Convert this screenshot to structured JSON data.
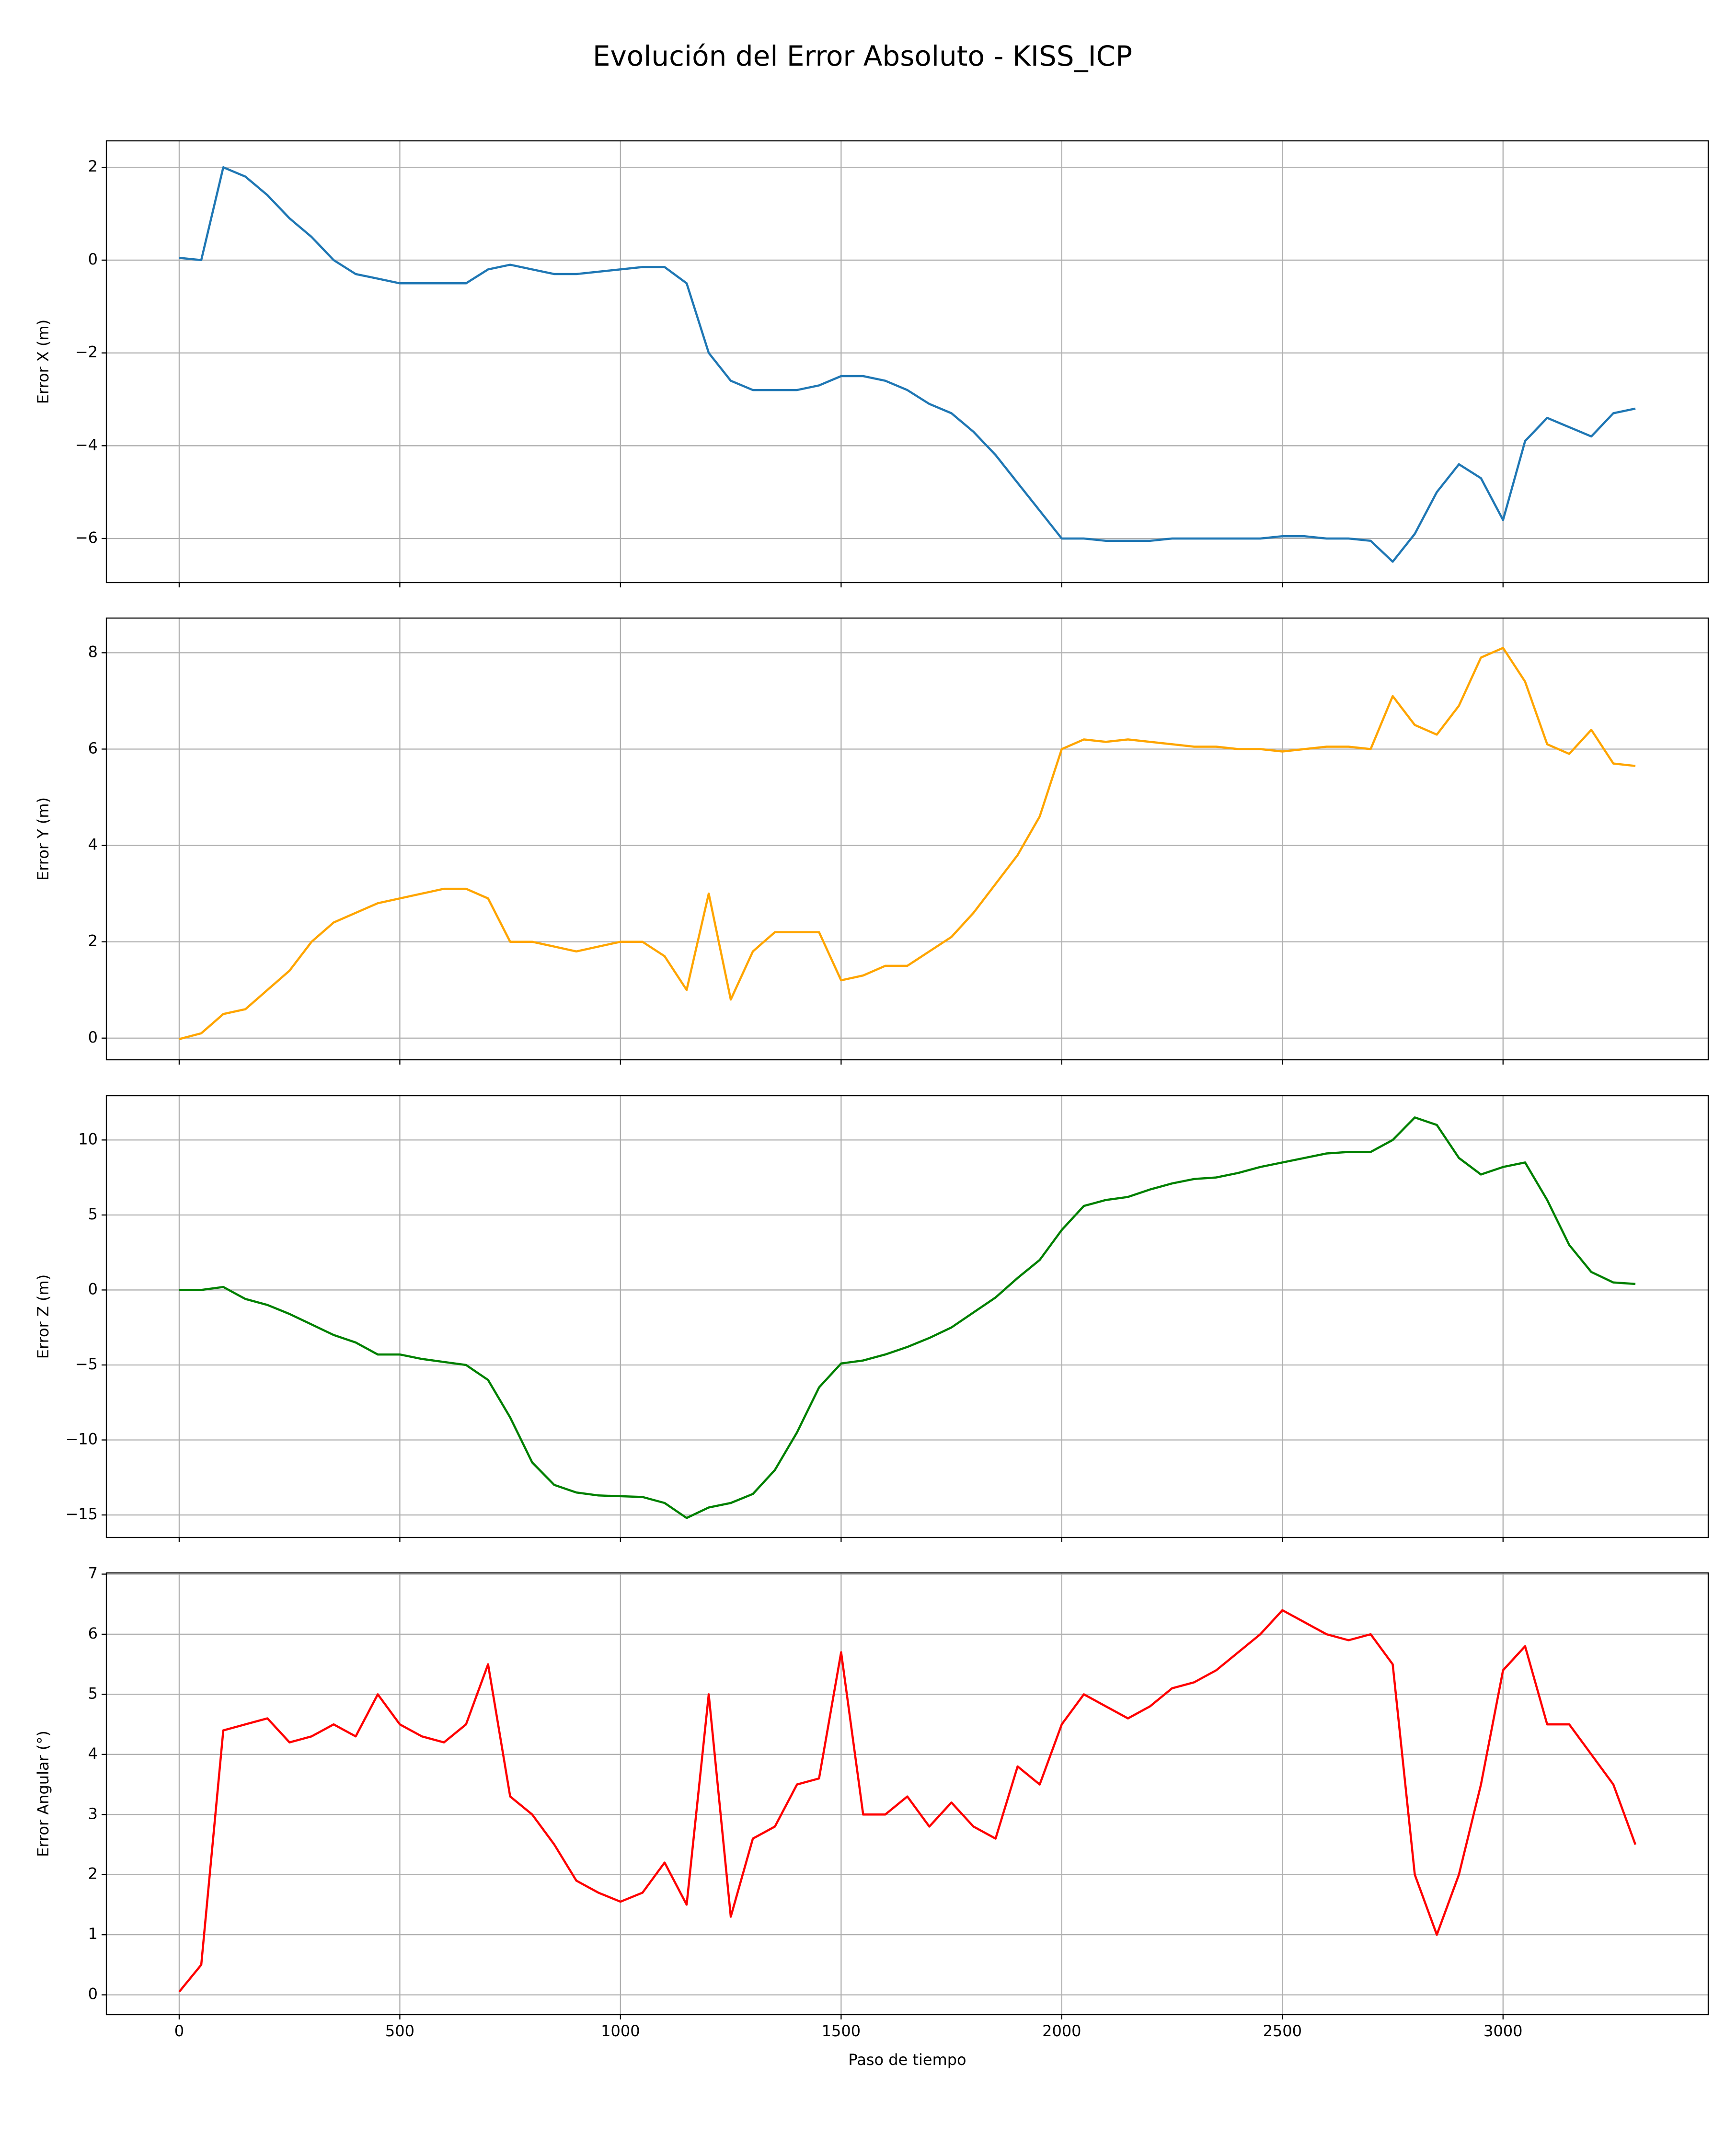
{
  "title": "Evolución del Error Absoluto - KISS_ICP",
  "chart_data": [
    {
      "type": "line",
      "ylabel": "Error X (m)",
      "color": "#1f77b4",
      "grid": true,
      "xlim": [
        -165,
        3465
      ],
      "ylim": [
        -6.95,
        2.57
      ],
      "xticks": [
        0,
        500,
        1000,
        1500,
        2000,
        2500,
        3000
      ],
      "yticks": [
        {
          "value": -6,
          "label": "−6"
        },
        {
          "value": -4,
          "label": "−4"
        },
        {
          "value": -2,
          "label": "−2"
        },
        0,
        2
      ],
      "x": [
        0,
        50,
        100,
        150,
        200,
        250,
        300,
        350,
        400,
        450,
        500,
        550,
        600,
        650,
        700,
        750,
        800,
        850,
        900,
        950,
        1000,
        1050,
        1100,
        1150,
        1200,
        1250,
        1300,
        1350,
        1400,
        1450,
        1500,
        1550,
        1600,
        1650,
        1700,
        1750,
        1800,
        1850,
        1900,
        1950,
        2000,
        2050,
        2100,
        2150,
        2200,
        2250,
        2300,
        2350,
        2400,
        2450,
        2500,
        2550,
        2600,
        2650,
        2700,
        2750,
        2800,
        2850,
        2900,
        2950,
        3000,
        3050,
        3100,
        3150,
        3200,
        3250,
        3300
      ],
      "values": [
        0.05,
        0.0,
        2.0,
        1.8,
        1.4,
        0.9,
        0.5,
        0.0,
        -0.3,
        -0.4,
        -0.5,
        -0.5,
        -0.5,
        -0.5,
        -0.2,
        -0.1,
        -0.2,
        -0.3,
        -0.3,
        -0.25,
        -0.2,
        -0.15,
        -0.15,
        -0.5,
        -2.0,
        -2.6,
        -2.8,
        -2.8,
        -2.8,
        -2.7,
        -2.5,
        -2.5,
        -2.6,
        -2.8,
        -3.1,
        -3.3,
        -3.7,
        -4.2,
        -4.8,
        -5.4,
        -6.0,
        -6.0,
        -6.05,
        -6.05,
        -6.05,
        -6.0,
        -6.0,
        -6.0,
        -6.0,
        -6.0,
        -5.95,
        -5.95,
        -6.0,
        -6.0,
        -6.05,
        -6.5,
        -5.9,
        -5.0,
        -4.4,
        -4.7,
        -5.6,
        -3.9,
        -3.4,
        -3.6,
        -3.8,
        -3.3,
        -3.2
      ]
    },
    {
      "type": "line",
      "ylabel": "Error Y (m)",
      "color": "#ffa500",
      "grid": true,
      "xlim": [
        -165,
        3465
      ],
      "ylim": [
        -0.45,
        8.72
      ],
      "xticks": [
        0,
        500,
        1000,
        1500,
        2000,
        2500,
        3000
      ],
      "yticks": [
        0,
        2,
        4,
        6,
        8
      ],
      "x": [
        0,
        50,
        100,
        150,
        200,
        250,
        300,
        350,
        400,
        450,
        500,
        550,
        600,
        650,
        700,
        750,
        800,
        850,
        900,
        950,
        1000,
        1050,
        1100,
        1150,
        1200,
        1250,
        1300,
        1350,
        1400,
        1450,
        1500,
        1550,
        1600,
        1650,
        1700,
        1750,
        1800,
        1850,
        1900,
        1950,
        2000,
        2050,
        2100,
        2150,
        2200,
        2250,
        2300,
        2350,
        2400,
        2450,
        2500,
        2550,
        2600,
        2650,
        2700,
        2750,
        2800,
        2850,
        2900,
        2950,
        3000,
        3050,
        3100,
        3150,
        3200,
        3250,
        3300
      ],
      "values": [
        -0.02,
        0.1,
        0.5,
        0.6,
        1.0,
        1.4,
        2.0,
        2.4,
        2.6,
        2.8,
        2.9,
        3.0,
        3.1,
        3.1,
        2.9,
        2.0,
        2.0,
        1.9,
        1.8,
        1.9,
        2.0,
        2.0,
        1.7,
        1.0,
        3.0,
        0.8,
        1.8,
        2.2,
        2.2,
        2.2,
        1.2,
        1.3,
        1.5,
        1.5,
        1.8,
        2.1,
        2.6,
        3.2,
        3.8,
        4.6,
        6.0,
        6.2,
        6.15,
        6.2,
        6.15,
        6.1,
        6.05,
        6.05,
        6.0,
        6.0,
        5.95,
        6.0,
        6.05,
        6.05,
        6.0,
        7.1,
        6.5,
        6.3,
        6.9,
        7.9,
        8.1,
        7.4,
        6.1,
        5.9,
        6.4,
        5.7,
        5.65
      ]
    },
    {
      "type": "line",
      "ylabel": "Error Z (m)",
      "color": "#008000",
      "grid": true,
      "xlim": [
        -165,
        3465
      ],
      "ylim": [
        -16.5,
        12.95
      ],
      "xticks": [
        0,
        500,
        1000,
        1500,
        2000,
        2500,
        3000
      ],
      "yticks": [
        {
          "value": -15,
          "label": "−15"
        },
        {
          "value": -10,
          "label": "−10"
        },
        {
          "value": -5,
          "label": "−5"
        },
        0,
        5,
        10
      ],
      "x": [
        0,
        50,
        100,
        150,
        200,
        250,
        300,
        350,
        400,
        450,
        500,
        550,
        600,
        650,
        700,
        750,
        800,
        850,
        900,
        950,
        1000,
        1050,
        1100,
        1150,
        1200,
        1250,
        1300,
        1350,
        1400,
        1450,
        1500,
        1550,
        1600,
        1650,
        1700,
        1750,
        1800,
        1850,
        1900,
        1950,
        2000,
        2050,
        2100,
        2150,
        2200,
        2250,
        2300,
        2350,
        2400,
        2450,
        2500,
        2550,
        2600,
        2650,
        2700,
        2750,
        2800,
        2850,
        2900,
        2950,
        3000,
        3050,
        3100,
        3150,
        3200,
        3250,
        3300
      ],
      "values": [
        0,
        0,
        0.2,
        -0.6,
        -1.0,
        -1.6,
        -2.3,
        -3.0,
        -3.5,
        -4.3,
        -4.3,
        -4.6,
        -4.8,
        -5.0,
        -6.0,
        -8.5,
        -11.5,
        -13.0,
        -13.5,
        -13.7,
        -13.75,
        -13.8,
        -14.2,
        -15.2,
        -14.5,
        -14.2,
        -13.6,
        -12.0,
        -9.5,
        -6.5,
        -4.9,
        -4.7,
        -4.3,
        -3.8,
        -3.2,
        -2.5,
        -1.5,
        -0.5,
        0.8,
        2.0,
        4.0,
        5.6,
        6.0,
        6.2,
        6.7,
        7.1,
        7.4,
        7.5,
        7.8,
        8.2,
        8.5,
        8.8,
        9.1,
        9.2,
        9.2,
        10.0,
        11.5,
        11.0,
        8.8,
        7.7,
        8.2,
        8.5,
        6.0,
        3.0,
        1.2,
        0.5,
        0.4
      ]
    },
    {
      "type": "line",
      "ylabel": "Error Angular (°)",
      "xlabel": "Paso de tiempo",
      "color": "#ff0000",
      "grid": true,
      "xlim": [
        -165,
        3465
      ],
      "ylim": [
        -0.33,
        7.02
      ],
      "xticks": [
        0,
        500,
        1000,
        1500,
        2000,
        2500,
        3000
      ],
      "yticks": [
        0,
        1,
        2,
        3,
        4,
        5,
        6,
        7
      ],
      "x": [
        0,
        50,
        100,
        150,
        200,
        250,
        300,
        350,
        400,
        450,
        500,
        550,
        600,
        650,
        700,
        750,
        800,
        850,
        900,
        950,
        1000,
        1050,
        1100,
        1150,
        1200,
        1250,
        1300,
        1350,
        1400,
        1450,
        1500,
        1550,
        1600,
        1650,
        1700,
        1750,
        1800,
        1850,
        1900,
        1950,
        2000,
        2050,
        2100,
        2150,
        2200,
        2250,
        2300,
        2350,
        2400,
        2450,
        2500,
        2550,
        2600,
        2650,
        2700,
        2750,
        2800,
        2850,
        2900,
        2950,
        3000,
        3050,
        3100,
        3150,
        3200,
        3250,
        3300
      ],
      "values": [
        0.05,
        0.5,
        4.4,
        4.5,
        4.6,
        4.2,
        4.3,
        4.5,
        4.3,
        5.0,
        4.5,
        4.3,
        4.2,
        4.5,
        5.5,
        3.3,
        3.0,
        2.5,
        1.9,
        1.7,
        1.55,
        1.7,
        2.2,
        1.5,
        5.0,
        1.3,
        2.6,
        2.8,
        3.5,
        3.6,
        5.7,
        3.0,
        3.0,
        3.3,
        2.8,
        3.2,
        2.8,
        2.6,
        3.8,
        3.5,
        4.5,
        5.0,
        4.8,
        4.6,
        4.8,
        5.1,
        5.2,
        5.4,
        5.7,
        6.0,
        6.4,
        6.2,
        6.0,
        5.9,
        6.0,
        5.5,
        2.0,
        1.0,
        2.0,
        3.5,
        5.4,
        5.8,
        4.5,
        4.5,
        4.0,
        3.5,
        2.5
      ]
    }
  ]
}
